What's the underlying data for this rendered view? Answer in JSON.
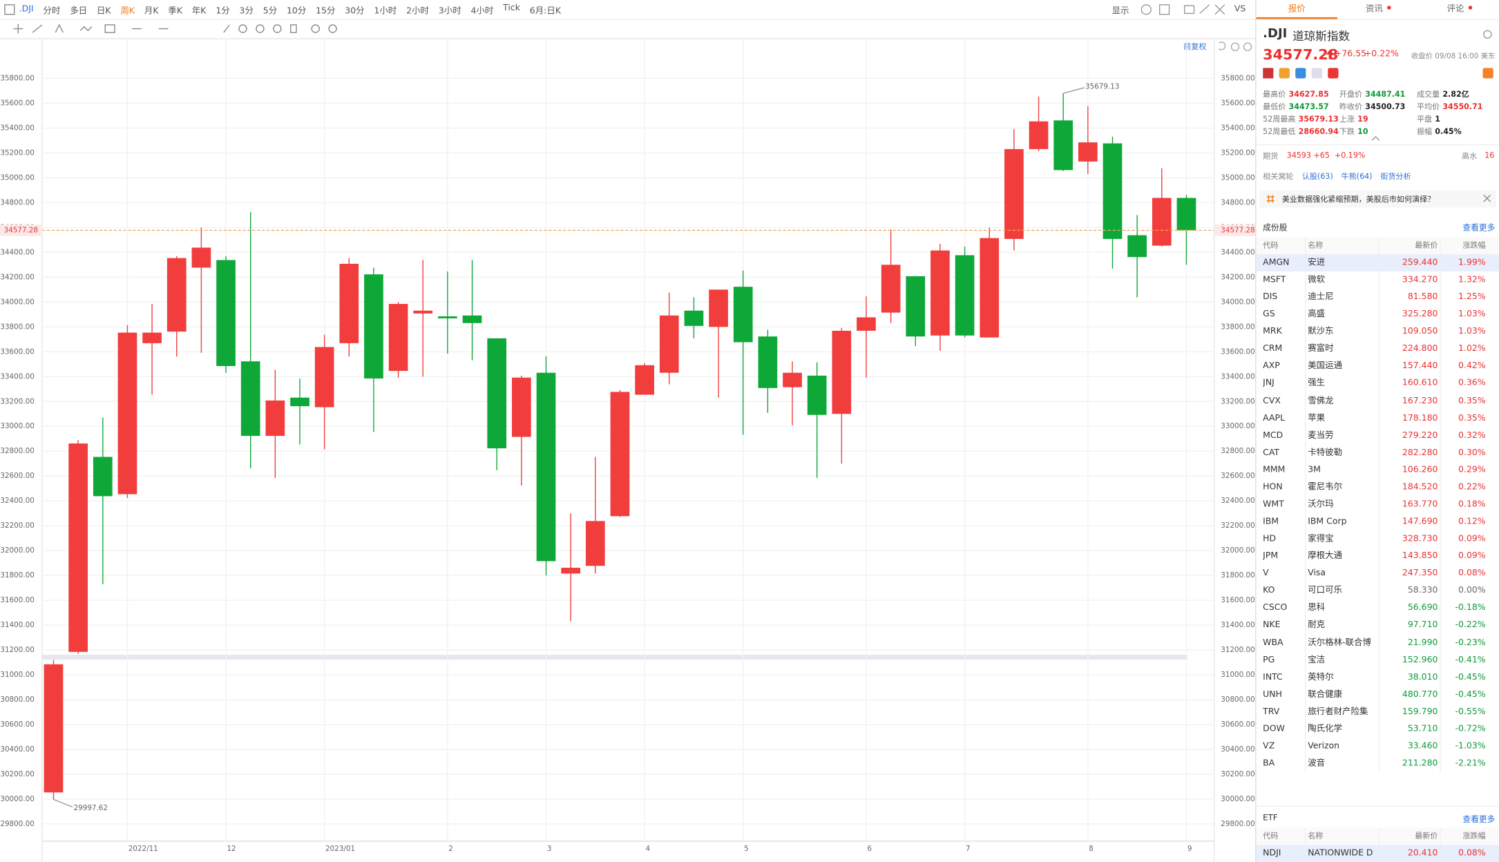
{
  "toolbar": {
    "symbol": ".DJI",
    "periods": [
      "分时",
      "多日",
      "日K",
      "周K",
      "月K",
      "季K",
      "年K",
      "1分",
      "3分",
      "5分",
      "10分",
      "15分",
      "30分",
      "1小时",
      "2小时",
      "3小时",
      "4小时",
      "Tick"
    ],
    "active_period": "周K",
    "range": "6月:日K",
    "display": "显示",
    "compare": "VS"
  },
  "chart_header": {
    "adjust": "前复权"
  },
  "chart_data": {
    "type": "candlestick",
    "up_color": "#f23d3d",
    "down_color": "#0ea838",
    "grid": true,
    "price_line_color": "#f5a45c",
    "categories": [
      null,
      null,
      null,
      "2022/11",
      null,
      null,
      null,
      "12",
      null,
      null,
      null,
      "2023/01",
      null,
      null,
      null,
      null,
      "2",
      null,
      null,
      null,
      "3",
      null,
      null,
      null,
      "4",
      null,
      null,
      null,
      "5",
      null,
      null,
      null,
      null,
      "6",
      null,
      null,
      null,
      "7",
      null,
      null,
      null,
      null,
      "8",
      null,
      null,
      null,
      "9"
    ],
    "open": [
      30054,
      31185,
      32754,
      32454,
      33669,
      33762,
      34277,
      34338,
      33523,
      32923,
      33231,
      33154,
      33669,
      34223,
      33446,
      33908,
      33885,
      33892,
      33708,
      32915,
      33431,
      31815,
      31877,
      32277,
      33254,
      33431,
      33931,
      33800,
      34123,
      33723,
      33315,
      33408,
      33100,
      33769,
      33915,
      34208,
      33731,
      34377,
      33715,
      34508,
      35231,
      35462,
      35131,
      35277,
      34538,
      34454,
      34838
    ],
    "high": [
      31120,
      32890,
      33070,
      33815,
      33985,
      34369,
      34600,
      34369,
      34723,
      33454,
      33385,
      33738,
      34354,
      34277,
      34000,
      34338,
      34246,
      34338,
      33708,
      33408,
      33562,
      32300,
      32754,
      33292,
      33508,
      34077,
      34038,
      34100,
      34254,
      33777,
      33523,
      33515,
      33792,
      34046,
      34585,
      34208,
      34469,
      34446,
      34600,
      35392,
      35654,
      35679.13,
      35577,
      35331,
      34700,
      35077,
      34862
    ],
    "low": [
      29997.62,
      31170,
      31730,
      32423,
      33254,
      33562,
      33592,
      33431,
      32662,
      32585,
      32854,
      32815,
      33562,
      32954,
      33392,
      33400,
      33585,
      33531,
      32646,
      32523,
      31800,
      31431,
      31815,
      32269,
      33254,
      33338,
      33708,
      33231,
      32931,
      33108,
      33008,
      32585,
      32700,
      33392,
      33831,
      33646,
      33608,
      33715,
      33715,
      34415,
      35215,
      35054,
      35031,
      34269,
      34038,
      34446,
      34300
    ],
    "close": [
      31085,
      32862,
      32438,
      33754,
      33754,
      34354,
      34438,
      33485,
      32923,
      33208,
      33162,
      33638,
      34308,
      33385,
      33985,
      33931,
      33869,
      33831,
      32823,
      33392,
      31915,
      31862,
      32238,
      33277,
      33492,
      33892,
      33808,
      34100,
      33677,
      33308,
      33431,
      33092,
      33769,
      33877,
      34300,
      33723,
      34415,
      33731,
      34515,
      35231,
      35454,
      35062,
      35285,
      34508,
      34362,
      34838,
      34577.28
    ],
    "ylim": [
      29800,
      35800
    ],
    "yticks": [
      {
        "value": 29800,
        "label": "29800.00"
      },
      {
        "value": 30000,
        "label": "30000.00"
      },
      {
        "value": 30200,
        "label": "30200.00"
      },
      {
        "value": 30400,
        "label": "30400.00"
      },
      {
        "value": 30600,
        "label": "30600.00"
      },
      {
        "value": 30800,
        "label": "30800.00"
      },
      {
        "value": 31000,
        "label": "31000.00"
      },
      {
        "value": 31200,
        "label": "31200.00"
      },
      {
        "value": 31400,
        "label": "31400.00"
      },
      {
        "value": 31600,
        "label": "31600.00"
      },
      {
        "value": 31800,
        "label": "31800.00"
      },
      {
        "value": 32000,
        "label": "32000.00"
      },
      {
        "value": 32200,
        "label": "32200.00"
      },
      {
        "value": 32400,
        "label": "32400.00"
      },
      {
        "value": 32600,
        "label": "32600.00"
      },
      {
        "value": 32800,
        "label": "32800.00"
      },
      {
        "value": 33000,
        "label": "33000.00"
      },
      {
        "value": 33200,
        "label": "33200.00"
      },
      {
        "value": 33400,
        "label": "33400.00"
      },
      {
        "value": 33600,
        "label": "33600.00"
      },
      {
        "value": 33800,
        "label": "33800.00"
      },
      {
        "value": 34000,
        "label": "34000.00"
      },
      {
        "value": 34200,
        "label": "34200.00"
      },
      {
        "value": 34400,
        "label": "34400.00"
      },
      {
        "value": 34600,
        "label": "34600.00"
      },
      {
        "value": 34800,
        "label": "34800.00"
      },
      {
        "value": 35000,
        "label": "35000.00"
      },
      {
        "value": 35200,
        "label": "35200.00"
      },
      {
        "value": 35400,
        "label": "35400.00"
      },
      {
        "value": 35600,
        "label": "35600.00"
      },
      {
        "value": 35800,
        "label": "35800.00"
      }
    ]
  },
  "quote": {
    "tabs": [
      "报价",
      "资讯",
      "评论"
    ],
    "symbol": ".DJI",
    "name": "道琼斯指数",
    "price": "34577.28",
    "change": "+76.55",
    "change_pct": "+0.22%",
    "close_time": "收盘价 09/08 16:00 美东",
    "stats": [
      {
        "label": "最高价",
        "value": "34627.85",
        "color": "red"
      },
      {
        "label": "开盘价",
        "value": "34487.41",
        "color": "green"
      },
      {
        "label": "成交量",
        "value": "2.82亿",
        "color": "black"
      },
      {
        "label": "最低价",
        "value": "34473.57",
        "color": "green"
      },
      {
        "label": "昨收价",
        "value": "34500.73",
        "color": "black"
      },
      {
        "label": "平均价",
        "value": "34550.71",
        "color": "red"
      },
      {
        "label": "52周最高",
        "value": "35679.13",
        "color": "red"
      },
      {
        "label": "上涨",
        "value": "19",
        "color": "red"
      },
      {
        "label": "平盘",
        "value": "1",
        "color": "black"
      },
      {
        "label": "52周最低",
        "value": "28660.94",
        "color": "red"
      },
      {
        "label": "下跌",
        "value": "10",
        "color": "green"
      },
      {
        "label": "振幅",
        "value": "0.45%",
        "color": "black"
      }
    ],
    "futures": {
      "label": "期货",
      "price": "34593",
      "change": "+65",
      "pct": "+0.19%",
      "premium_label": "高水",
      "premium": "16"
    },
    "warrants": {
      "label": "相关窝轮",
      "links": [
        "认股(63)",
        "牛熊(64)",
        "街货分析"
      ]
    },
    "news": "美业数据强化紧缩预期，美股后市如何演绎？",
    "constituents": {
      "title": "成份股",
      "more": "查看更多",
      "columns": [
        "代码",
        "名称",
        "最新价",
        "涨跌幅"
      ],
      "rows": [
        [
          "AMGN",
          "安进",
          "259.440",
          "1.99%"
        ],
        [
          "MSFT",
          "微软",
          "334.270",
          "1.32%"
        ],
        [
          "DIS",
          "迪士尼",
          "81.580",
          "1.25%"
        ],
        [
          "GS",
          "高盛",
          "325.280",
          "1.03%"
        ],
        [
          "MRK",
          "默沙东",
          "109.050",
          "1.03%"
        ],
        [
          "CRM",
          "赛富时",
          "224.800",
          "1.02%"
        ],
        [
          "AXP",
          "美国运通",
          "157.440",
          "0.42%"
        ],
        [
          "JNJ",
          "强生",
          "160.610",
          "0.36%"
        ],
        [
          "CVX",
          "雪佛龙",
          "167.230",
          "0.35%"
        ],
        [
          "AAPL",
          "苹果",
          "178.180",
          "0.35%"
        ],
        [
          "MCD",
          "麦当劳",
          "279.220",
          "0.32%"
        ],
        [
          "CAT",
          "卡特彼勒",
          "282.280",
          "0.30%"
        ],
        [
          "MMM",
          "3M",
          "106.260",
          "0.29%"
        ],
        [
          "HON",
          "霍尼韦尔",
          "184.520",
          "0.22%"
        ],
        [
          "WMT",
          "沃尔玛",
          "163.770",
          "0.18%"
        ],
        [
          "IBM",
          "IBM Corp",
          "147.690",
          "0.12%"
        ],
        [
          "HD",
          "家得宝",
          "328.730",
          "0.09%"
        ],
        [
          "JPM",
          "摩根大通",
          "143.850",
          "0.09%"
        ],
        [
          "V",
          "Visa",
          "247.350",
          "0.08%"
        ],
        [
          "KO",
          "可口可乐",
          "58.330",
          "0.00%"
        ],
        [
          "CSCO",
          "思科",
          "56.690",
          "-0.18%"
        ],
        [
          "NKE",
          "耐克",
          "97.710",
          "-0.22%"
        ],
        [
          "WBA",
          "沃尔格林-联合博",
          "21.990",
          "-0.23%"
        ],
        [
          "PG",
          "宝洁",
          "152.960",
          "-0.41%"
        ],
        [
          "INTC",
          "英特尔",
          "38.010",
          "-0.45%"
        ],
        [
          "UNH",
          "联合健康",
          "480.770",
          "-0.45%"
        ],
        [
          "TRV",
          "旅行者财产险集",
          "159.790",
          "-0.55%"
        ],
        [
          "DOW",
          "陶氏化学",
          "53.710",
          "-0.72%"
        ],
        [
          "VZ",
          "Verizon",
          "33.460",
          "-1.03%"
        ],
        [
          "BA",
          "波音",
          "211.280",
          "-2.21%"
        ]
      ]
    },
    "etf": {
      "title": "ETF",
      "more": "查看更多",
      "columns": [
        "代码",
        "名称",
        "最新价",
        "涨跌幅"
      ],
      "rows": [
        [
          "NDJI",
          "NATIONWIDE D",
          "20.410",
          "0.08%"
        ]
      ]
    }
  }
}
